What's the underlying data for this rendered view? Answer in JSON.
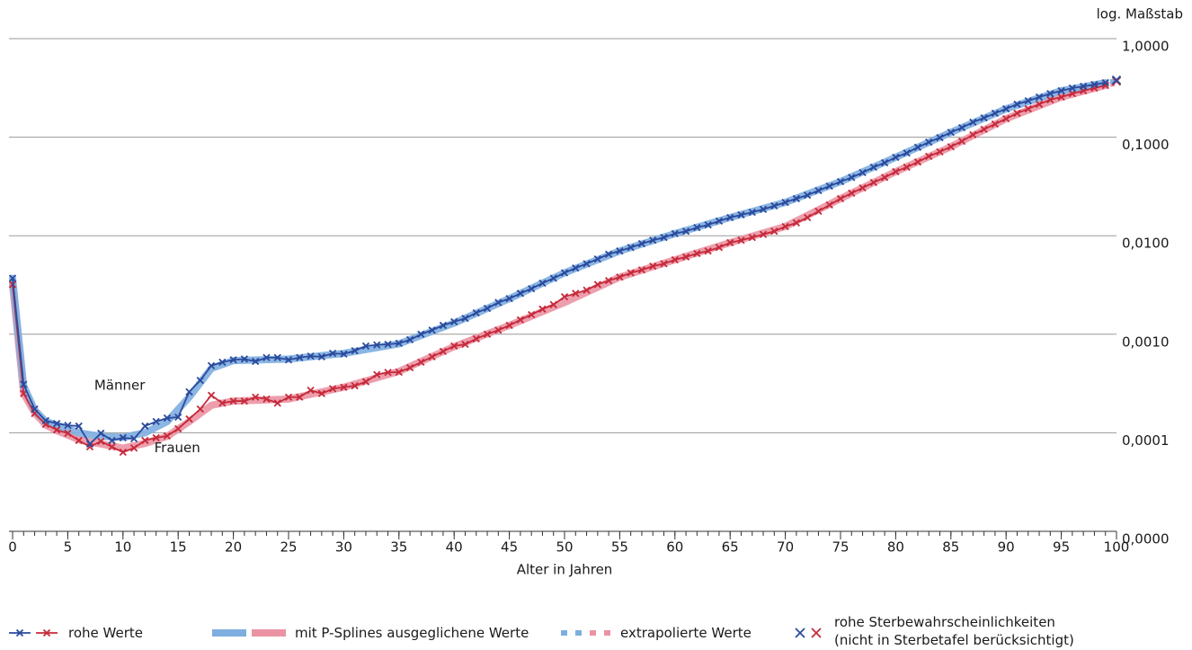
{
  "chart_data": {
    "type": "line",
    "y_scale_label": "log. Maßstab",
    "x_label": "Alter in Jahren",
    "log_y": true,
    "grid": true,
    "xlim": [
      0,
      100
    ],
    "xticks": [
      0,
      5,
      10,
      15,
      20,
      25,
      30,
      35,
      40,
      45,
      50,
      55,
      60,
      65,
      70,
      75,
      80,
      85,
      90,
      95,
      100
    ],
    "ylim": [
      1e-05,
      1
    ],
    "yticks": [
      {
        "value": 1e-05,
        "label": "0,0000"
      },
      {
        "value": 0.0001,
        "label": "0,0001"
      },
      {
        "value": 0.001,
        "label": "0,0010"
      },
      {
        "value": 0.01,
        "label": "0,0100"
      },
      {
        "value": 0.1,
        "label": "0,1000"
      },
      {
        "value": 1,
        "label": "1,0000"
      }
    ],
    "annotations": [
      {
        "text": "Männer",
        "x": 12,
        "y": 0.0003
      },
      {
        "text": "Frauen",
        "x": 17,
        "y": 7e-05
      }
    ],
    "series": [
      {
        "name": "mit P-Splines ausgeglichene Werte",
        "style": "band",
        "colors": [
          "#7eaee0",
          "#eb93a3"
        ],
        "x": [
          0,
          1,
          2,
          3,
          4,
          5,
          6,
          8,
          10,
          12,
          14,
          16,
          18,
          20,
          25,
          30,
          35,
          40,
          45,
          50,
          55,
          60,
          65,
          70,
          75,
          80,
          85,
          90,
          95,
          99
        ],
        "men": [
          0.0037,
          0.0003,
          0.00017,
          0.00013,
          0.00012,
          0.00011,
          0.0001,
          9.2e-05,
          9e-05,
          0.0001,
          0.00013,
          0.00023,
          0.00045,
          0.00054,
          0.00056,
          0.00064,
          0.0008,
          0.0013,
          0.0023,
          0.0042,
          0.007,
          0.0105,
          0.0153,
          0.0218,
          0.0354,
          0.0625,
          0.112,
          0.194,
          0.296,
          0.357
        ],
        "women": [
          0.0032,
          0.00025,
          0.00016,
          0.00012,
          0.000105,
          9.5e-05,
          8.5e-05,
          7.7e-05,
          7e-05,
          7.8e-05,
          9.2e-05,
          0.00013,
          0.00019,
          0.00021,
          0.00022,
          0.00029,
          0.00042,
          0.00075,
          0.00123,
          0.0021,
          0.0038,
          0.0057,
          0.0085,
          0.0124,
          0.0238,
          0.0447,
          0.08,
          0.154,
          0.255,
          0.335
        ]
      },
      {
        "name": "extrapolierte Werte",
        "style": "dashed",
        "colors": [
          "#7eaee0",
          "#eb93a3"
        ],
        "x": [
          98,
          99,
          100
        ],
        "men": [
          0.342,
          0.357,
          0.372
        ],
        "women": [
          0.315,
          0.335,
          0.355
        ]
      },
      {
        "name": "rohe Werte",
        "style": "line-marker",
        "colors": [
          "#2b4a9d",
          "#c62a3b"
        ],
        "x": [
          0,
          1,
          2,
          3,
          4,
          5,
          6,
          7,
          8,
          9,
          10,
          11,
          12,
          13,
          14,
          15,
          16,
          17,
          18,
          19,
          20,
          21,
          22,
          23,
          24,
          25,
          26,
          27,
          28,
          29,
          30,
          31,
          32,
          33,
          34,
          35,
          36,
          37,
          38,
          39,
          40,
          41,
          42,
          43,
          44,
          45,
          46,
          47,
          48,
          49,
          50,
          51,
          52,
          53,
          54,
          55,
          56,
          57,
          58,
          59,
          60,
          61,
          62,
          63,
          64,
          65,
          66,
          67,
          68,
          69,
          70,
          71,
          72,
          73,
          74,
          75,
          76,
          77,
          78,
          79,
          80,
          81,
          82,
          83,
          84,
          85,
          86,
          87,
          88,
          89,
          90,
          91,
          92,
          93,
          94,
          95,
          96,
          97,
          98,
          99
        ],
        "men": [
          0.0037,
          0.00031,
          0.000174,
          0.000133,
          0.000124,
          0.000119,
          0.000117,
          7.7e-05,
          9.89e-05,
          8.36e-05,
          8.9e-05,
          8.7e-05,
          0.000117,
          0.00013,
          0.000141,
          0.000144,
          0.00026,
          0.00034,
          0.00048,
          0.00052,
          0.00055,
          0.00056,
          0.00053,
          0.00058,
          0.00058,
          0.00055,
          0.00058,
          0.0006,
          0.00059,
          0.00064,
          0.00063,
          0.00068,
          0.00076,
          0.00078,
          0.00079,
          0.00081,
          0.00088,
          0.001,
          0.0011,
          0.00123,
          0.00134,
          0.00145,
          0.00165,
          0.00183,
          0.0021,
          0.0023,
          0.0026,
          0.0029,
          0.0033,
          0.0037,
          0.0042,
          0.0047,
          0.0052,
          0.0058,
          0.0065,
          0.007,
          0.0076,
          0.0083,
          0.009,
          0.0096,
          0.0105,
          0.0111,
          0.0121,
          0.0129,
          0.0141,
          0.0153,
          0.0163,
          0.0173,
          0.0185,
          0.0201,
          0.0218,
          0.0238,
          0.0258,
          0.0287,
          0.0319,
          0.0354,
          0.039,
          0.0437,
          0.0496,
          0.055,
          0.0625,
          0.069,
          0.079,
          0.089,
          0.099,
          0.112,
          0.125,
          0.142,
          0.157,
          0.175,
          0.194,
          0.216,
          0.234,
          0.255,
          0.277,
          0.296,
          0.315,
          0.328,
          0.342,
          0.357
        ],
        "women": [
          0.0032,
          0.00025,
          0.000157,
          0.000122,
          0.000107,
          9.89e-05,
          8.36e-05,
          7.2e-05,
          8.2e-05,
          7.2e-05,
          6.35e-05,
          7e-05,
          8.36e-05,
          8.9e-05,
          9.3e-05,
          0.00011,
          0.000138,
          0.000174,
          0.00024,
          0.0002,
          0.00021,
          0.00021,
          0.00023,
          0.00022,
          0.0002,
          0.00023,
          0.00023,
          0.00027,
          0.00025,
          0.00028,
          0.00029,
          0.0003,
          0.00033,
          0.00039,
          0.00041,
          0.000412,
          0.000458,
          0.00052,
          0.00059,
          0.00067,
          0.00076,
          0.00079,
          0.0009,
          0.001,
          0.0011,
          0.00123,
          0.0014,
          0.00158,
          0.0018,
          0.002,
          0.0024,
          0.0026,
          0.0028,
          0.0032,
          0.0035,
          0.0038,
          0.0042,
          0.0045,
          0.0049,
          0.0052,
          0.0057,
          0.0061,
          0.0066,
          0.007,
          0.0076,
          0.0085,
          0.009,
          0.0096,
          0.0103,
          0.0111,
          0.0124,
          0.0135,
          0.0153,
          0.0177,
          0.0205,
          0.0238,
          0.027,
          0.0306,
          0.0347,
          0.039,
          0.0447,
          0.0496,
          0.056,
          0.064,
          0.071,
          0.08,
          0.091,
          0.106,
          0.12,
          0.136,
          0.154,
          0.175,
          0.194,
          0.216,
          0.24,
          0.255,
          0.277,
          0.296,
          0.315,
          0.335
        ]
      },
      {
        "name": "rohe Sterbewahrscheinlichkeiten\n(nicht in Sterbetafel berücksichtigt)",
        "style": "cross",
        "colors": [
          "#2b4a9d",
          "#c62a3b"
        ],
        "x": [
          100
        ],
        "men": [
          0.38
        ],
        "women": [
          0.37
        ]
      }
    ]
  }
}
